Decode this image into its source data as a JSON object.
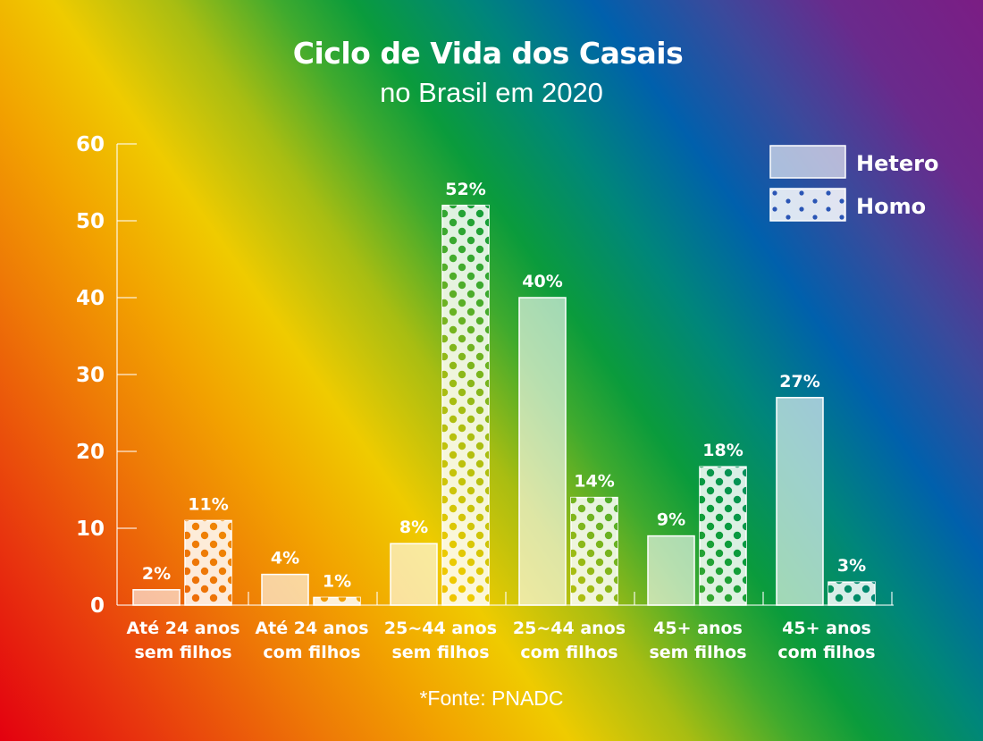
{
  "chart_data": {
    "type": "bar",
    "title": "Ciclo de Vida dos Casais",
    "subtitle": "no Brasil em 2020",
    "xlabel": "",
    "ylabel": "",
    "ylim": [
      0,
      60
    ],
    "yticks": [
      0,
      10,
      20,
      30,
      40,
      50,
      60
    ],
    "grid": false,
    "legend_position": "top-right",
    "categories": [
      [
        "Até 24 anos",
        "sem filhos"
      ],
      [
        "Até 24 anos",
        "com filhos"
      ],
      [
        "25~44 anos",
        "sem filhos"
      ],
      [
        "25~44 anos",
        "com filhos"
      ],
      [
        "45+ anos",
        "sem filhos"
      ],
      [
        "45+ anos",
        "com filhos"
      ]
    ],
    "series": [
      {
        "name": "Hetero",
        "pattern": "solid",
        "values": [
          2,
          4,
          8,
          40,
          9,
          27
        ],
        "labels": [
          "2%",
          "4%",
          "8%",
          "40%",
          "9%",
          "27%"
        ]
      },
      {
        "name": "Homo",
        "pattern": "dots",
        "values": [
          11,
          1,
          52,
          14,
          18,
          3
        ],
        "labels": [
          "11%",
          "1%",
          "52%",
          "14%",
          "18%",
          "3%"
        ]
      }
    ],
    "source": "*Fonte: PNADC"
  },
  "colors": {
    "text": "#ffffff",
    "bar_fill": "rgba(255,255,255,0.62)",
    "bar_stroke": "#ffffff"
  }
}
